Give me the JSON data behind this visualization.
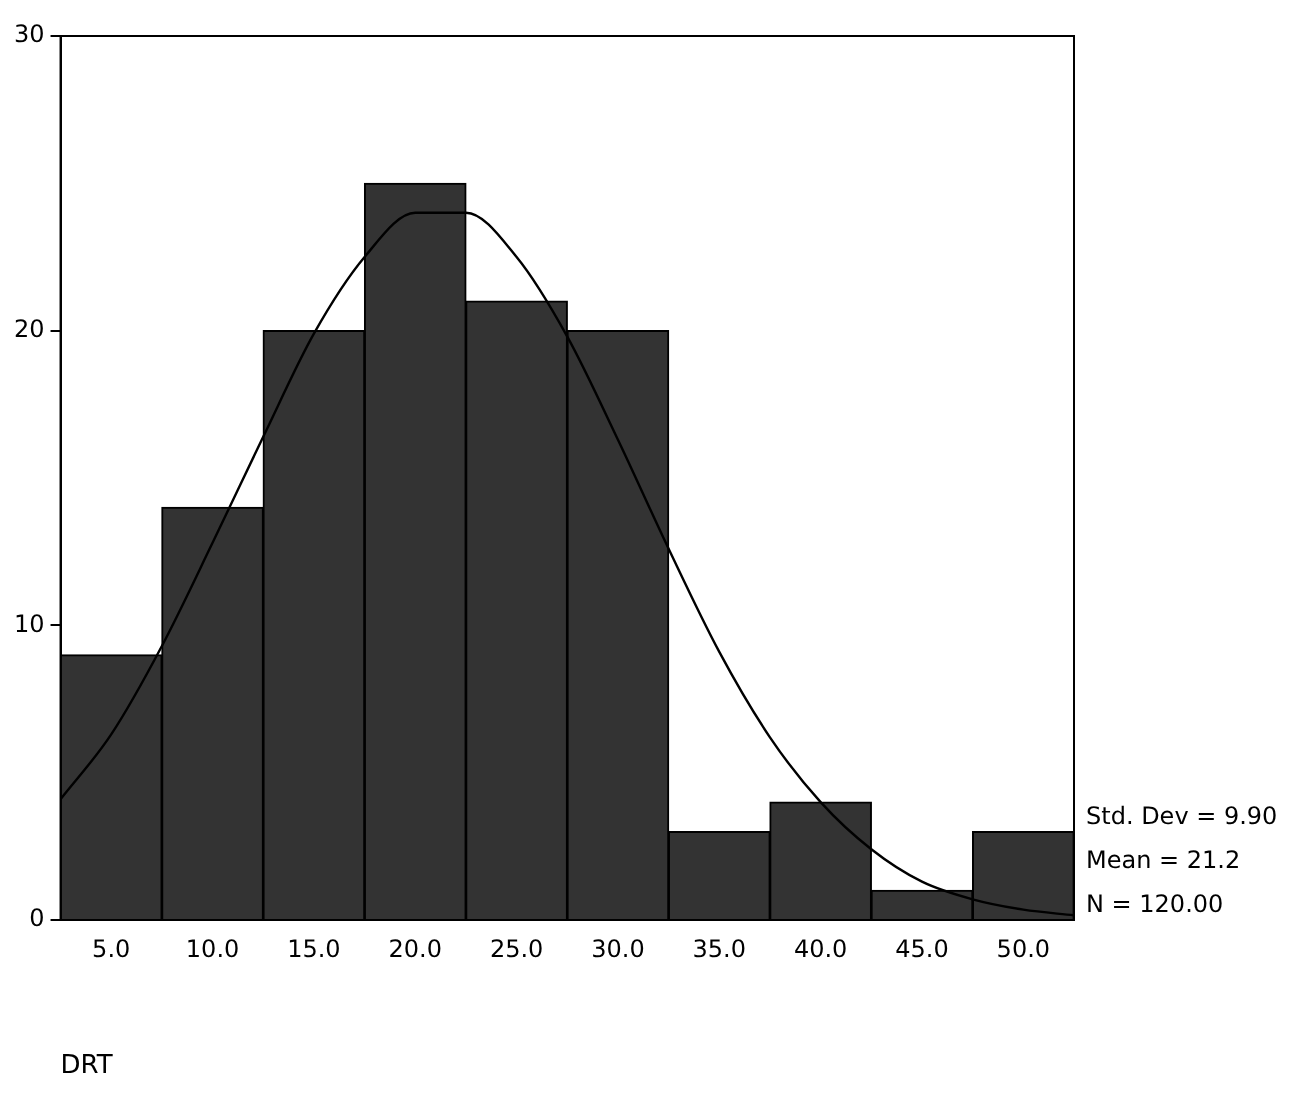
{
  "chart_data": {
    "type": "histogram",
    "xlabel": "DRT",
    "bins": [
      2.5,
      7.5,
      12.5,
      17.5,
      22.5,
      27.5,
      32.5,
      37.5,
      42.5,
      47.5,
      52.5
    ],
    "values": [
      9,
      14,
      20,
      25,
      21,
      20,
      3,
      4,
      1,
      3
    ],
    "color": "#333333",
    "series": [
      {
        "type": "line",
        "color": "#000000",
        "x": [
          2.5,
          5,
          7.5,
          10,
          12.5,
          15,
          17.5,
          20,
          22.5,
          25,
          27.5,
          30,
          32.5,
          35,
          37.5,
          40,
          42.5,
          45,
          47.5,
          50,
          52.5
        ],
        "values": [
          4.1,
          6.3,
          9.3,
          12.8,
          16.4,
          19.9,
          22.5,
          24,
          24,
          22.5,
          19.8,
          16.3,
          12.6,
          9.1,
          6.2,
          4,
          2.4,
          1.3,
          0.7,
          0.35,
          0.16
        ]
      }
    ],
    "xlim": [
      2.5,
      52.5
    ],
    "xticks": [
      {
        "value": 5,
        "label": "5.0"
      },
      {
        "value": 10,
        "label": "10.0"
      },
      {
        "value": 15,
        "label": "15.0"
      },
      {
        "value": 20,
        "label": "20.0"
      },
      {
        "value": 25,
        "label": "25.0"
      },
      {
        "value": 30,
        "label": "30.0"
      },
      {
        "value": 35,
        "label": "35.0"
      },
      {
        "value": 40,
        "label": "40.0"
      },
      {
        "value": 45,
        "label": "45.0"
      },
      {
        "value": 50,
        "label": "50.0"
      }
    ],
    "ylim": [
      0,
      30
    ],
    "yticks": [
      0,
      10,
      20,
      30
    ],
    "grid": false,
    "legend": false,
    "marker": "none",
    "line_style": "solid",
    "annotations": [
      "Std. Dev = 9.90",
      "Mean = 21.2",
      "N = 120.00"
    ]
  }
}
